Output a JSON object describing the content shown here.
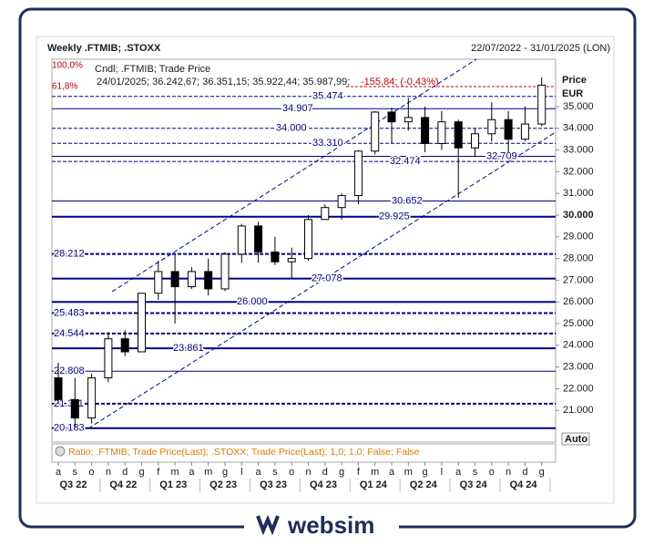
{
  "logo": "websim",
  "chart_data": {
    "type": "candlestick",
    "title": "Weekly .FTMIB; .STOXX",
    "subtitle": "22/07/2022 - 31/01/2025 (LON)",
    "legend": "Cndl; .FTMIB; Trade Price",
    "info": "24/01/2025; 36.242,67; 36.351,15; 35.922,44; 35.987,99;",
    "change": "-155,84; (-0,43%)",
    "fib_top": "100,0%",
    "fib_618": "61,8%",
    "y_label": "Price",
    "y_unit": "EUR",
    "auto": "Auto",
    "ratio": "Ratio; .FTMIB; Trade Price(Last); .STOXX; Trade Price(Last);  1,0; 1,0; False; False",
    "categories": [
      "a",
      "s",
      "o",
      "n",
      "d",
      "g",
      "f",
      "m",
      "a",
      "m",
      "g",
      "l",
      "a",
      "s",
      "o",
      "n",
      "d",
      "g",
      "f",
      "m",
      "a",
      "m",
      "g",
      "l",
      "a",
      "s",
      "o",
      "n",
      "d",
      "g"
    ],
    "quarters": [
      "Q3 22",
      "Q4 22",
      "Q1 23",
      "Q2 23",
      "Q3 23",
      "Q4 23",
      "Q1 24",
      "Q2 24",
      "Q3 24",
      "Q4 24"
    ],
    "open": [
      22500,
      21500,
      20650,
      22500,
      24300,
      23700,
      26400,
      27400,
      26700,
      27400,
      26600,
      28200,
      29500,
      28300,
      27850,
      28000,
      29800,
      30350,
      30900,
      32950,
      34750,
      34300,
      34500,
      33300,
      34300,
      33100,
      33750,
      34400,
      33500,
      34200
    ],
    "high": [
      23200,
      22500,
      22700,
      24600,
      24700,
      26400,
      27900,
      28200,
      27600,
      28000,
      28300,
      29600,
      29700,
      29000,
      28500,
      30000,
      30500,
      31000,
      33000,
      34800,
      34950,
      35400,
      35000,
      34800,
      34400,
      34000,
      35200,
      34800,
      35000,
      36350
    ],
    "low": [
      21300,
      20200,
      20400,
      22300,
      23500,
      23700,
      26100,
      25000,
      26600,
      26300,
      26500,
      27800,
      27800,
      27700,
      27100,
      27900,
      29800,
      29800,
      30500,
      32800,
      33300,
      33900,
      32900,
      33000,
      30800,
      32700,
      33400,
      32900,
      33400,
      34100
    ],
    "close": [
      21500,
      20650,
      22500,
      24300,
      23700,
      26400,
      27400,
      26700,
      27400,
      26600,
      28200,
      29500,
      28300,
      27850,
      28000,
      29800,
      30350,
      30900,
      32950,
      34750,
      34300,
      34500,
      33300,
      34300,
      33100,
      33750,
      34400,
      33500,
      34200,
      35990
    ],
    "up_color": "#ffffff",
    "down_color": "#000000",
    "level_color": "#00008b",
    "ylim": [
      19540,
      37185
    ],
    "yticks": [
      {
        "value": 21000,
        "label": "21.000"
      },
      {
        "value": 22000,
        "label": "22.000"
      },
      {
        "value": 23000,
        "label": "23.000"
      },
      {
        "value": 24000,
        "label": "24.000"
      },
      {
        "value": 25000,
        "label": "25.000"
      },
      {
        "value": 26000,
        "label": "26.000"
      },
      {
        "value": 27000,
        "label": "27.000"
      },
      {
        "value": 28000,
        "label": "28.000"
      },
      {
        "value": 29000,
        "label": "29.000"
      },
      {
        "value": 30000,
        "label": "30.000"
      },
      {
        "value": 31000,
        "label": "31.000"
      },
      {
        "value": 32000,
        "label": "32.000"
      },
      {
        "value": 33000,
        "label": "33.000"
      },
      {
        "value": 34000,
        "label": "34.000"
      },
      {
        "value": 35000,
        "label": "35.000"
      }
    ],
    "levels": [
      {
        "value": 35474,
        "label": "35.474",
        "style": "dashed",
        "width": 1
      },
      {
        "value": 34907,
        "label": "34.907",
        "style": "solid",
        "width": 1
      },
      {
        "value": 34000,
        "label": "34.000",
        "style": "dashed",
        "width": 1
      },
      {
        "value": 33310,
        "label": "33.310",
        "style": "dashed",
        "width": 1
      },
      {
        "value": 32709,
        "label": "32.709",
        "style": "solid",
        "width": 1
      },
      {
        "value": 32474,
        "label": "32.474",
        "style": "dashed",
        "width": 1
      },
      {
        "value": 30652,
        "label": "30.652",
        "style": "solid",
        "width": 1
      },
      {
        "value": 29925,
        "label": "29.925",
        "style": "solid",
        "width": 2
      },
      {
        "value": 28212,
        "label": "28.212",
        "style": "dashed",
        "width": 2
      },
      {
        "value": 27078,
        "label": "27.078",
        "style": "solid",
        "width": 2
      },
      {
        "value": 26000,
        "label": "26.000",
        "style": "solid",
        "width": 2
      },
      {
        "value": 25483,
        "label": "25.483",
        "style": "dashed",
        "width": 2
      },
      {
        "value": 24544,
        "label": "24.544",
        "style": "dashed",
        "width": 2
      },
      {
        "value": 23861,
        "label": "23.861",
        "style": "solid",
        "width": 2
      },
      {
        "value": 22808,
        "label": "22.808",
        "style": "solid",
        "width": 1
      },
      {
        "value": 21311,
        "label": "21.311",
        "style": "dashed",
        "width": 2
      },
      {
        "value": 20183,
        "label": "20.183",
        "style": "solid",
        "width": 2
      }
    ]
  }
}
